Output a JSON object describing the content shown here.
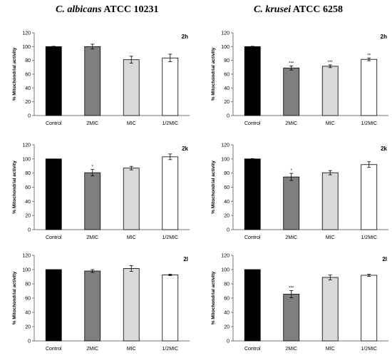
{
  "columns": [
    {
      "species": "C. albicans",
      "strain": "ATCC 10231"
    },
    {
      "species": "C. krusei",
      "strain": "ATCC 6258"
    }
  ],
  "colors": {
    "Control": "#000000",
    "2MIC": "#7f7f7f",
    "MIC": "#d9d9d9",
    "1/2MIC": "#ffffff"
  },
  "chart_data": [
    {
      "type": "bar",
      "panel": "2h",
      "organism": "C. albicans ATCC 10231",
      "categories": [
        "Control",
        "2MIC",
        "MIC",
        "1/2MIC"
      ],
      "values": [
        100,
        100,
        81,
        83.5
      ],
      "errors": [
        0.5,
        3.5,
        5,
        5.5
      ],
      "significance": [
        "",
        "",
        "",
        ""
      ],
      "ylabel": "% Mitochondrial activity",
      "ylim": [
        0,
        120
      ],
      "yticks": [
        0,
        20,
        40,
        60,
        80,
        100,
        120
      ]
    },
    {
      "type": "bar",
      "panel": "2h",
      "organism": "C. krusei ATCC 6258",
      "categories": [
        "Control",
        "2MIC",
        "MIC",
        "1/2MIC"
      ],
      "values": [
        100,
        69,
        71.5,
        81.5
      ],
      "errors": [
        0.5,
        3,
        2,
        2
      ],
      "significance": [
        "",
        "***",
        "***",
        "**"
      ],
      "ylabel": "% Mitochondrial activity",
      "ylim": [
        0,
        120
      ],
      "yticks": [
        0,
        20,
        40,
        60,
        80,
        100,
        120
      ]
    },
    {
      "type": "bar",
      "panel": "2k",
      "organism": "C. albicans ATCC 10231",
      "categories": [
        "Control",
        "2MIC",
        "MIC",
        "1/2MIC"
      ],
      "values": [
        100,
        80.5,
        87,
        103
      ],
      "errors": [
        0,
        4.5,
        2.5,
        4
      ],
      "significance": [
        "",
        "*",
        "",
        ""
      ],
      "ylabel": "% Mitochondrial activity",
      "ylim": [
        0,
        120
      ],
      "yticks": [
        0,
        20,
        40,
        60,
        80,
        100,
        120
      ]
    },
    {
      "type": "bar",
      "panel": "2k",
      "organism": "C. krusei ATCC 6258",
      "categories": [
        "Control",
        "2MIC",
        "MIC",
        "1/2MIC"
      ],
      "values": [
        100,
        74.5,
        80.5,
        92
      ],
      "errors": [
        0.5,
        5,
        3,
        4
      ],
      "significance": [
        "",
        "*",
        "",
        ""
      ],
      "ylabel": "% Mitochondrial activity",
      "ylim": [
        0,
        120
      ],
      "yticks": [
        0,
        20,
        40,
        60,
        80,
        100,
        120
      ]
    },
    {
      "type": "bar",
      "panel": "2l",
      "organism": "C. albicans ATCC 10231",
      "categories": [
        "Control",
        "2MIC",
        "MIC",
        "1/2MIC"
      ],
      "values": [
        100,
        98,
        101.5,
        92.5
      ],
      "errors": [
        0,
        2,
        4,
        1
      ],
      "significance": [
        "",
        "",
        "",
        ""
      ],
      "ylabel": "% Mitochondrial activity",
      "ylim": [
        0,
        120
      ],
      "yticks": [
        0,
        20,
        40,
        60,
        80,
        100,
        120
      ]
    },
    {
      "type": "bar",
      "panel": "2l",
      "organism": "C. krusei ATCC 6258",
      "categories": [
        "Control",
        "2MIC",
        "MIC",
        "1/2MIC"
      ],
      "values": [
        100,
        65.5,
        89,
        92
      ],
      "errors": [
        0,
        5,
        3.5,
        1.5
      ],
      "significance": [
        "",
        "***",
        "",
        ""
      ],
      "ylabel": "% Mitochondrial activity",
      "ylim": [
        0,
        120
      ],
      "yticks": [
        0,
        20,
        40,
        60,
        80,
        100,
        120
      ]
    }
  ]
}
